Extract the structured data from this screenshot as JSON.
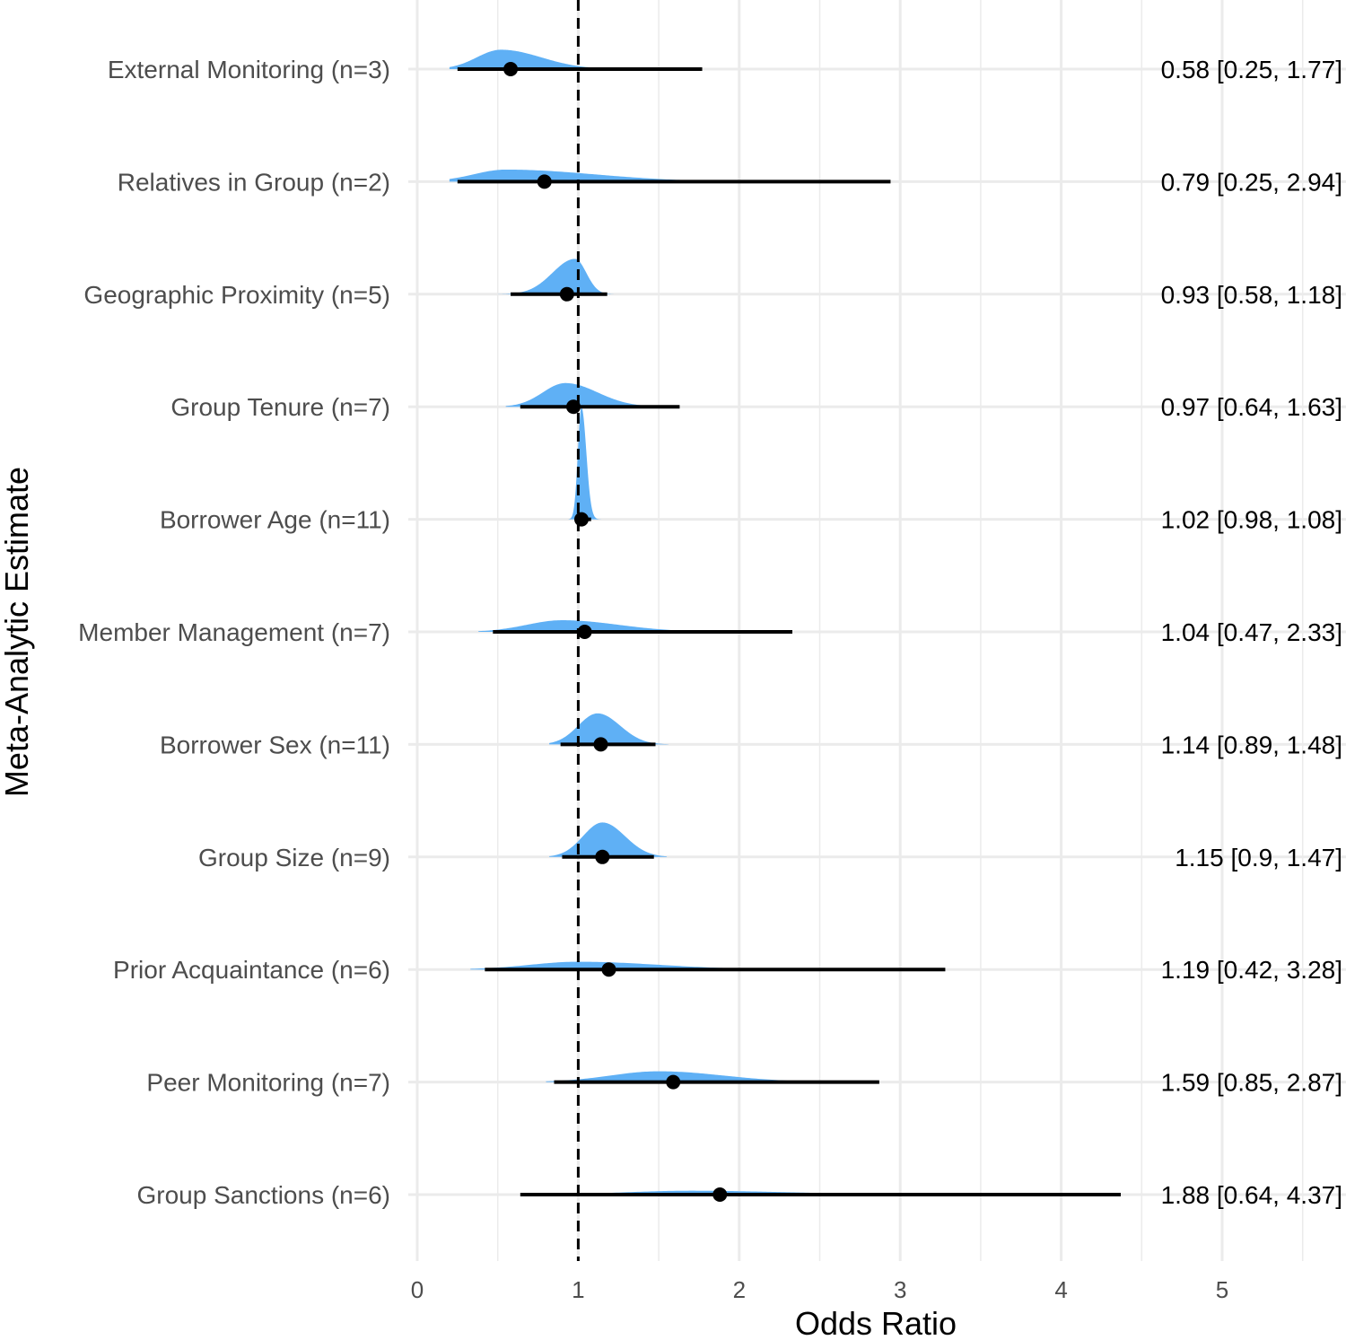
{
  "chart_data": {
    "type": "forest",
    "xlabel": "Odds Ratio",
    "ylabel": "Meta-Analytic Estimate",
    "xlim": [
      0,
      5.5
    ],
    "x_ticks": [
      0,
      1,
      2,
      3,
      4,
      5
    ],
    "x_tick_labels": [
      "0",
      "1",
      "2",
      "3",
      "4",
      "5"
    ],
    "reference_line": 1,
    "grid": true,
    "density_color": "#5fb0f5",
    "point_color": "#000000",
    "rows": [
      {
        "label": "External Monitoring (n=3)",
        "estimate": 0.58,
        "lower": 0.25,
        "upper": 1.77,
        "annotation": "0.58 [0.25, 1.77]",
        "density": {
          "mode": 0.52,
          "sd_left": 0.15,
          "sd_right": 0.25,
          "peak": 0.45,
          "min": 0.2,
          "max": 1.1
        }
      },
      {
        "label": "Relatives in Group (n=2)",
        "estimate": 0.79,
        "lower": 0.25,
        "upper": 2.94,
        "annotation": "0.79 [0.25, 2.94]",
        "density": {
          "mode": 0.55,
          "sd_left": 0.2,
          "sd_right": 0.55,
          "peak": 0.28,
          "min": 0.2,
          "max": 2.2
        }
      },
      {
        "label": "Geographic Proximity (n=5)",
        "estimate": 0.93,
        "lower": 0.58,
        "upper": 1.18,
        "annotation": "0.93 [0.58, 1.18]",
        "density": {
          "mode": 0.98,
          "sd_left": 0.14,
          "sd_right": 0.07,
          "peak": 0.82,
          "min": 0.48,
          "max": 1.24
        }
      },
      {
        "label": "Group Tenure (n=7)",
        "estimate": 0.97,
        "lower": 0.64,
        "upper": 1.63,
        "annotation": "0.97 [0.64, 1.63]",
        "density": {
          "mode": 0.92,
          "sd_left": 0.14,
          "sd_right": 0.2,
          "peak": 0.55,
          "min": 0.55,
          "max": 1.6
        }
      },
      {
        "label": "Borrower Age (n=11)",
        "estimate": 1.02,
        "lower": 0.98,
        "upper": 1.08,
        "annotation": "1.02 [0.98, 1.08]",
        "density": {
          "mode": 1.02,
          "sd_left": 0.022,
          "sd_right": 0.03,
          "peak": 2.6,
          "min": 0.94,
          "max": 1.15
        }
      },
      {
        "label": "Member Management (n=7)",
        "estimate": 1.04,
        "lower": 0.47,
        "upper": 2.33,
        "annotation": "1.04 [0.47, 2.33]",
        "density": {
          "mode": 0.9,
          "sd_left": 0.22,
          "sd_right": 0.35,
          "peak": 0.27,
          "min": 0.38,
          "max": 1.9
        }
      },
      {
        "label": "Borrower Sex (n=11)",
        "estimate": 1.14,
        "lower": 0.89,
        "upper": 1.48,
        "annotation": "1.14 [0.89, 1.48]",
        "density": {
          "mode": 1.12,
          "sd_left": 0.12,
          "sd_right": 0.14,
          "peak": 0.72,
          "min": 0.82,
          "max": 1.56
        }
      },
      {
        "label": "Group Size (n=9)",
        "estimate": 1.15,
        "lower": 0.9,
        "upper": 1.47,
        "annotation": "1.15 [0.9, 1.47]",
        "density": {
          "mode": 1.15,
          "sd_left": 0.12,
          "sd_right": 0.14,
          "peak": 0.8,
          "min": 0.82,
          "max": 1.55
        }
      },
      {
        "label": "Prior Acquaintance (n=6)",
        "estimate": 1.19,
        "lower": 0.42,
        "upper": 3.28,
        "annotation": "1.19 [0.42, 3.28]",
        "density": {
          "mode": 1.0,
          "sd_left": 0.3,
          "sd_right": 0.5,
          "peak": 0.18,
          "min": 0.33,
          "max": 2.5
        }
      },
      {
        "label": "Peer Monitoring (n=7)",
        "estimate": 1.59,
        "lower": 0.85,
        "upper": 2.87,
        "annotation": "1.59 [0.85, 2.87]",
        "density": {
          "mode": 1.5,
          "sd_left": 0.3,
          "sd_right": 0.4,
          "peak": 0.25,
          "min": 0.8,
          "max": 2.5
        }
      },
      {
        "label": "Group Sanctions (n=6)",
        "estimate": 1.88,
        "lower": 0.64,
        "upper": 4.37,
        "annotation": "1.88 [0.64, 4.37]",
        "density": {
          "mode": 1.7,
          "sd_left": 0.4,
          "sd_right": 0.6,
          "peak": 0.09,
          "min": 0.65,
          "max": 3.0
        }
      }
    ]
  }
}
